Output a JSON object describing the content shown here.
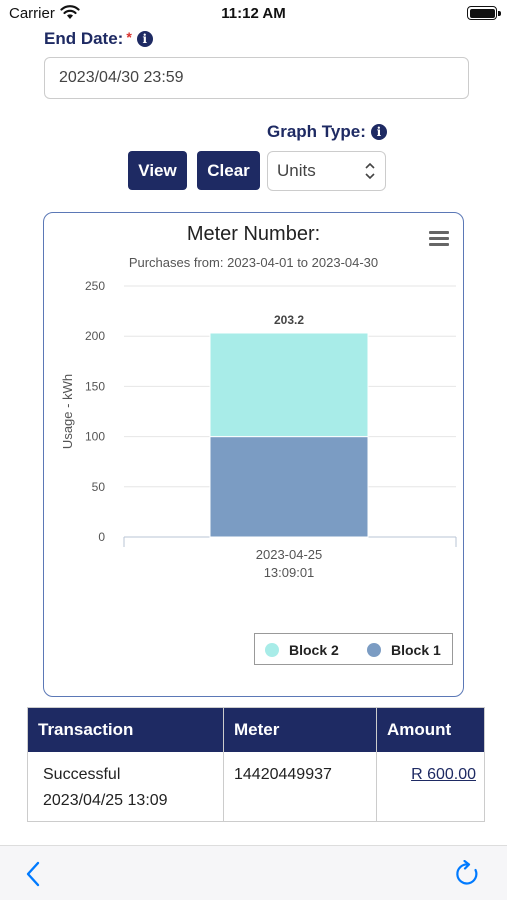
{
  "status_bar": {
    "carrier": "Carrier",
    "time": "11:12 AM"
  },
  "end_date": {
    "label": "End Date:",
    "required_mark": "*",
    "value": "2023/04/30 23:59"
  },
  "graph_type": {
    "label": "Graph Type:",
    "selected": "Units"
  },
  "buttons": {
    "view": "View",
    "clear": "Clear"
  },
  "chart_data": {
    "type": "bar",
    "title": "Meter Number:",
    "subtitle": "Purchases from: 2023-04-01 to 2023-04-30",
    "ylabel": "Usage - kWh",
    "xlabel": "",
    "ylim": [
      0,
      250
    ],
    "yticks": [
      "250",
      "200",
      "150",
      "100",
      "50",
      "0"
    ],
    "categories": [
      "2023-04-25 13:09:01"
    ],
    "category_lines": [
      "2023-04-25",
      "13:09:01"
    ],
    "stacked": true,
    "series": [
      {
        "name": "Block 2",
        "values": [
          103.2
        ],
        "color": "#a8ece8"
      },
      {
        "name": "Block 1",
        "values": [
          100
        ],
        "color": "#7b9cc3"
      }
    ],
    "total_label": "203.2",
    "legend_position": "bottom-right",
    "grid": true
  },
  "table": {
    "headers": [
      "Transaction",
      "Meter",
      "Amount"
    ],
    "rows": [
      {
        "status": "Successful",
        "date": "2023/04/25 13:09",
        "meter": "14420449937",
        "amount": "R 600.00"
      }
    ]
  },
  "colors": {
    "primary": "#1e2a63",
    "card_border": "#5b78b6",
    "accent": "#007aff"
  }
}
